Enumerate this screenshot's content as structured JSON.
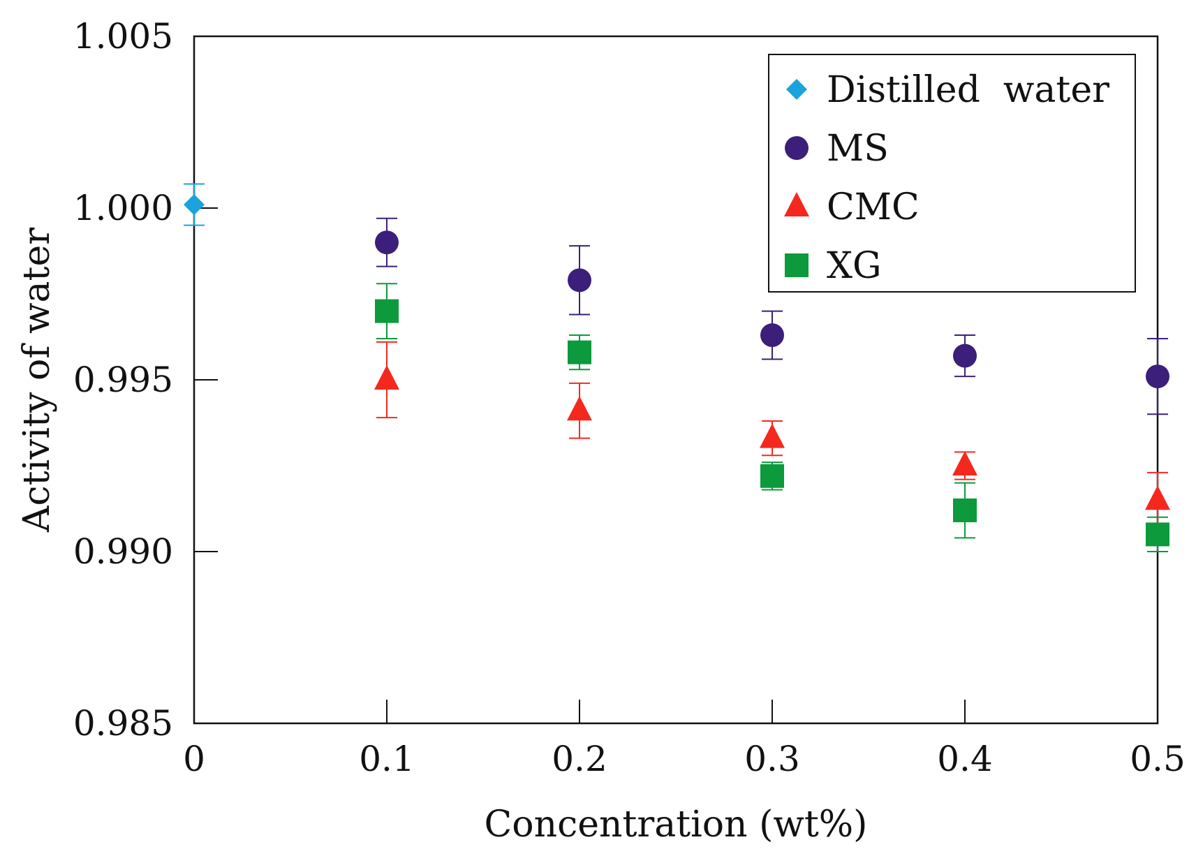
{
  "chart_data": {
    "type": "scatter",
    "xlabel": "Concentration (wt%)",
    "ylabel": "Activity of water",
    "xlim": [
      0,
      0.5
    ],
    "ylim": [
      0.985,
      1.005
    ],
    "xticks": [
      "0",
      "0.1",
      "0.2",
      "0.3",
      "0.4",
      "0.5"
    ],
    "yticks": [
      "0.985",
      "0.990",
      "0.995",
      "1.000",
      "1.005"
    ],
    "grid": false,
    "legend_position": "top-right",
    "series": [
      {
        "name": "Distilled  water",
        "marker": "diamond",
        "color": "#1aa3dc",
        "points": [
          {
            "x": 0,
            "y": 1.0001,
            "err": 0.0006
          }
        ]
      },
      {
        "name": "MS",
        "marker": "circle",
        "color": "#3b1f7a",
        "points": [
          {
            "x": 0.1,
            "y": 0.999,
            "err": 0.0007
          },
          {
            "x": 0.2,
            "y": 0.9979,
            "err": 0.001
          },
          {
            "x": 0.3,
            "y": 0.9963,
            "err": 0.0007
          },
          {
            "x": 0.4,
            "y": 0.9957,
            "err": 0.0006
          },
          {
            "x": 0.5,
            "y": 0.9951,
            "err": 0.0011
          }
        ]
      },
      {
        "name": "CMC",
        "marker": "triangle",
        "color": "#f5281e",
        "points": [
          {
            "x": 0.1,
            "y": 0.995,
            "err": 0.0011
          },
          {
            "x": 0.2,
            "y": 0.9941,
            "err": 0.0008
          },
          {
            "x": 0.3,
            "y": 0.9933,
            "err": 0.0005
          },
          {
            "x": 0.4,
            "y": 0.9925,
            "err": 0.0004
          },
          {
            "x": 0.5,
            "y": 0.9915,
            "err": 0.0008
          }
        ]
      },
      {
        "name": "XG",
        "marker": "square",
        "color": "#0c9a3c",
        "points": [
          {
            "x": 0.1,
            "y": 0.997,
            "err": 0.0008
          },
          {
            "x": 0.2,
            "y": 0.9958,
            "err": 0.0005
          },
          {
            "x": 0.3,
            "y": 0.9922,
            "err": 0.0004
          },
          {
            "x": 0.4,
            "y": 0.9912,
            "err": 0.0008
          },
          {
            "x": 0.5,
            "y": 0.9905,
            "err": 0.0005
          }
        ]
      }
    ]
  }
}
